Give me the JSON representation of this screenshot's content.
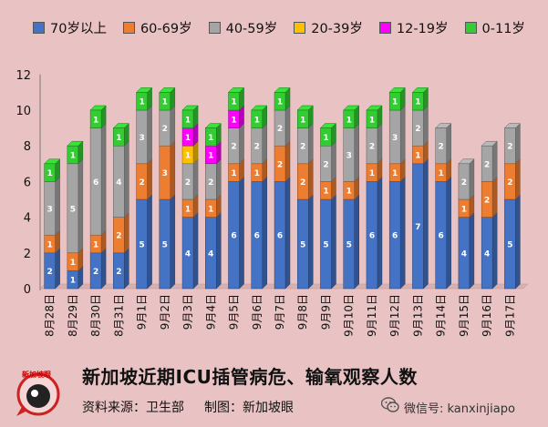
{
  "chart_data": {
    "type": "bar",
    "stacked": true,
    "categories": [
      "8月28日",
      "8月29日",
      "8月30日",
      "8月31日",
      "9月1日",
      "9月2日",
      "9月3日",
      "9月4日",
      "9月5日",
      "9月6日",
      "9月7日",
      "9月8日",
      "9月9日",
      "9月10日",
      "9月11日",
      "9月12日",
      "9月13日",
      "9月14日",
      "9月15日",
      "9月16日",
      "9月17日"
    ],
    "series": [
      {
        "name": "70岁以上",
        "color": "#4472c4",
        "values": [
          2,
          1,
          2,
          2,
          5,
          5,
          4,
          4,
          6,
          6,
          6,
          5,
          5,
          5,
          6,
          6,
          7,
          6,
          4,
          4,
          5
        ]
      },
      {
        "name": "60-69岁",
        "color": "#ed7d31",
        "values": [
          1,
          1,
          1,
          2,
          2,
          3,
          1,
          1,
          1,
          1,
          2,
          2,
          1,
          1,
          1,
          1,
          1,
          1,
          1,
          2,
          2
        ]
      },
      {
        "name": "40-59岁",
        "color": "#a5a5a5",
        "values": [
          3,
          5,
          6,
          4,
          3,
          2,
          2,
          2,
          2,
          2,
          2,
          2,
          2,
          3,
          2,
          3,
          2,
          2,
          2,
          2,
          2
        ]
      },
      {
        "name": "20-39岁",
        "color": "#ffc000",
        "values": [
          0,
          0,
          0,
          0,
          0,
          0,
          1,
          0,
          0,
          0,
          0,
          0,
          0,
          0,
          0,
          0,
          0,
          0,
          0,
          0,
          0
        ]
      },
      {
        "name": "12-19岁",
        "color": "#ff00ff",
        "values": [
          0,
          0,
          0,
          0,
          0,
          0,
          1,
          1,
          1,
          0,
          0,
          0,
          0,
          0,
          0,
          0,
          0,
          0,
          0,
          0,
          0
        ]
      },
      {
        "name": "0-11岁",
        "color": "#33cc33",
        "values": [
          1,
          1,
          1,
          1,
          1,
          1,
          1,
          1,
          1,
          1,
          1,
          1,
          1,
          1,
          1,
          1,
          1,
          0,
          0,
          0,
          0
        ]
      }
    ],
    "ylim": [
      0,
      12
    ],
    "yticks": [
      0,
      2,
      4,
      6,
      8,
      10,
      12
    ],
    "grid": false,
    "legend_position": "top"
  },
  "footer": {
    "title": "新加坡近期ICU插管病危、输氧观察人数",
    "source_label": "资料来源：卫生部",
    "maker_label": "制图：新加坡眼",
    "logo_text": "新加坡眼",
    "wechat_label": "微信号: kanxinjiapo"
  },
  "icons": {
    "logo": "sgeye-logo-icon",
    "wechat": "wechat-icon"
  }
}
